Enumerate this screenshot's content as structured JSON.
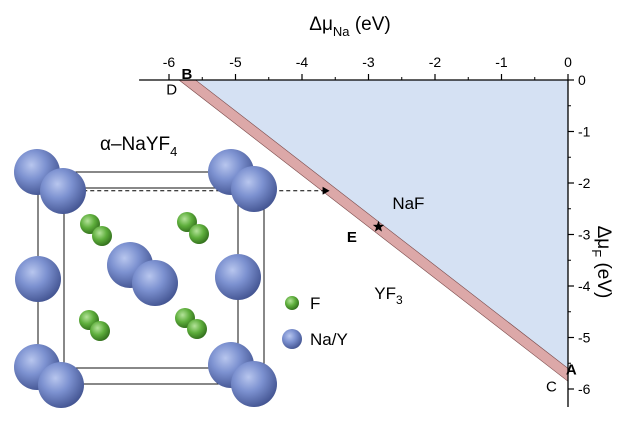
{
  "chart_data": {
    "type": "area",
    "x_axis": {
      "label": "Δμ",
      "label_subscript": "Na",
      "label_unit": "(eV)",
      "position": "top",
      "range": [
        -6,
        0
      ],
      "ticks": [
        -6,
        -5,
        -4,
        -3,
        -2,
        -1,
        0
      ],
      "tick_labels": [
        "-6",
        "-5",
        "-4",
        "-3",
        "-2",
        "-1",
        "0"
      ]
    },
    "y_axis": {
      "label": "Δμ",
      "label_subscript": "F",
      "label_unit": "(eV)",
      "position": "right",
      "range": [
        -6,
        0
      ],
      "ticks": [
        0,
        -1,
        -2,
        -3,
        -4,
        -5,
        -6
      ],
      "tick_labels": [
        "0",
        "-1",
        "-2",
        "-3",
        "-4",
        "-5",
        "-6"
      ]
    },
    "stable_band": {
      "name": "α-NaYF4 stable region",
      "color": "#dca8a8",
      "polygon": [
        [
          -5.85,
          0
        ],
        [
          -5.6,
          0
        ],
        [
          0,
          -5.6
        ],
        [
          0,
          -5.85
        ]
      ]
    },
    "regions": [
      {
        "label": "NaF",
        "x": -2.4,
        "y": -2.5,
        "color": "#d5e1f3",
        "polygon": [
          [
            -5.6,
            0
          ],
          [
            0,
            0
          ],
          [
            0,
            -5.6
          ]
        ]
      },
      {
        "label": "YF",
        "subscript": "3",
        "x": -2.7,
        "y": -4.25
      }
    ],
    "points": [
      {
        "label": "B",
        "bold": true,
        "x": -5.6,
        "y": 0,
        "label_x": -5.73,
        "label_y": 0.12
      },
      {
        "label": "D",
        "bold": false,
        "x": -5.85,
        "y": 0,
        "label_x": -5.96,
        "label_y": -0.18
      },
      {
        "label": "A",
        "bold": true,
        "x": 0,
        "y": -5.6,
        "label_x": 0.05,
        "label_y": -5.62
      },
      {
        "label": "C",
        "bold": false,
        "x": 0,
        "y": -5.85,
        "label_x": -0.25,
        "label_y": -5.95
      },
      {
        "label": "E",
        "bold": true,
        "x": -2.85,
        "y": -2.85,
        "label_x": -3.25,
        "label_y": -3.05
      }
    ],
    "marker": {
      "symbol": "star",
      "x": -2.85,
      "y": -2.85
    },
    "arrow": {
      "from": [
        -7.5,
        -2.15
      ],
      "to": [
        -3.6,
        -2.15
      ],
      "style": "dashed"
    }
  },
  "crystal": {
    "title": "α–NaYF",
    "title_subscript": "4",
    "legend": [
      {
        "label": "F",
        "color": "#5aa83a",
        "icon": "green-sphere-icon"
      },
      {
        "label": "Na/Y",
        "color": "#6f84c4",
        "icon": "blue-sphere-icon"
      }
    ]
  }
}
